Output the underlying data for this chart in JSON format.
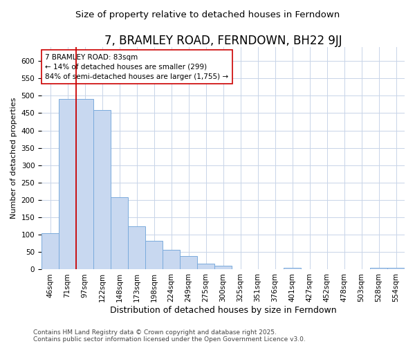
{
  "title": "7, BRAMLEY ROAD, FERNDOWN, BH22 9JJ",
  "subtitle": "Size of property relative to detached houses in Ferndown",
  "xlabel": "Distribution of detached houses by size in Ferndown",
  "ylabel": "Number of detached properties",
  "categories": [
    "46sqm",
    "71sqm",
    "97sqm",
    "122sqm",
    "148sqm",
    "173sqm",
    "198sqm",
    "224sqm",
    "249sqm",
    "275sqm",
    "300sqm",
    "325sqm",
    "351sqm",
    "376sqm",
    "401sqm",
    "427sqm",
    "452sqm",
    "478sqm",
    "503sqm",
    "528sqm",
    "554sqm"
  ],
  "values": [
    105,
    490,
    490,
    458,
    207,
    124,
    83,
    57,
    38,
    16,
    10,
    0,
    0,
    0,
    5,
    0,
    0,
    0,
    0,
    5,
    5
  ],
  "bar_color": "#c8d8f0",
  "bar_edge_color": "#7aabdc",
  "vline_color": "#cc0000",
  "annotation_text": "7 BRAMLEY ROAD: 83sqm\n← 14% of detached houses are smaller (299)\n84% of semi-detached houses are larger (1,755) →",
  "annotation_box_color": "#ffffff",
  "annotation_box_edge": "#cc0000",
  "annotation_fontsize": 7.5,
  "title_fontsize": 12,
  "subtitle_fontsize": 9.5,
  "xlabel_fontsize": 9,
  "ylabel_fontsize": 8,
  "tick_fontsize": 7.5,
  "footer": "Contains HM Land Registry data © Crown copyright and database right 2025.\nContains public sector information licensed under the Open Government Licence v3.0.",
  "footer_fontsize": 6.5,
  "ylim": [
    0,
    640
  ],
  "yticks": [
    0,
    50,
    100,
    150,
    200,
    250,
    300,
    350,
    400,
    450,
    500,
    550,
    600
  ],
  "grid_color": "#c8d4e8",
  "background_color": "#ffffff",
  "plot_background": "#ffffff"
}
